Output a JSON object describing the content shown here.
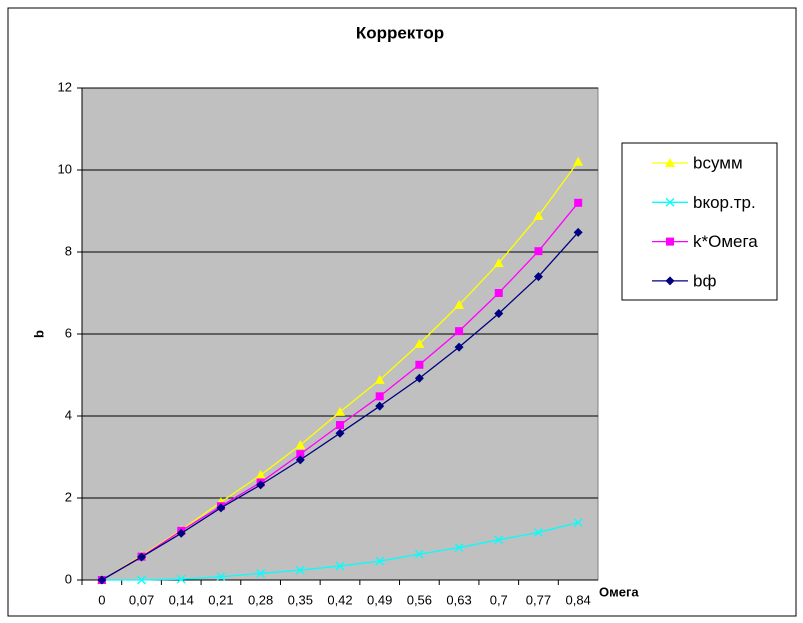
{
  "chart_data": {
    "type": "line",
    "title": "Корректор",
    "x_label": "Омега",
    "y_label": "b",
    "categories": [
      "0",
      "0,07",
      "0,14",
      "0,21",
      "0,28",
      "0,35",
      "0,42",
      "0,49",
      "0,56",
      "0,63",
      "0,7",
      "0,77",
      "0,84"
    ],
    "series": [
      {
        "name": "bсумм",
        "color": "#ffff00",
        "marker": "triangle",
        "values": [
          0,
          0.59,
          1.22,
          1.9,
          2.56,
          3.29,
          4.1,
          4.88,
          5.76,
          6.71,
          7.73,
          8.88,
          10.2
        ]
      },
      {
        "name": "bкор.тр.",
        "color": "#00ffff",
        "marker": "cross",
        "values": [
          0,
          0,
          0.02,
          0.08,
          0.16,
          0.24,
          0.34,
          0.46,
          0.63,
          0.79,
          0.98,
          1.16,
          1.4
        ]
      },
      {
        "name": "k*Омега",
        "color": "#ff00ff",
        "marker": "square",
        "values": [
          0,
          0.57,
          1.2,
          1.8,
          2.38,
          3.07,
          3.78,
          4.48,
          5.25,
          6.07,
          7.0,
          8.02,
          9.2
        ]
      },
      {
        "name": "bф",
        "color": "#000080",
        "marker": "diamond",
        "values": [
          0,
          0.56,
          1.14,
          1.76,
          2.32,
          2.93,
          3.58,
          4.24,
          4.92,
          5.68,
          6.5,
          7.4,
          8.48
        ]
      }
    ],
    "ylim": [
      0,
      12
    ],
    "yticks": [
      0,
      2,
      4,
      6,
      8,
      10,
      12
    ],
    "grid": true,
    "legend": "right",
    "plot_background": "#c0c0c0"
  }
}
